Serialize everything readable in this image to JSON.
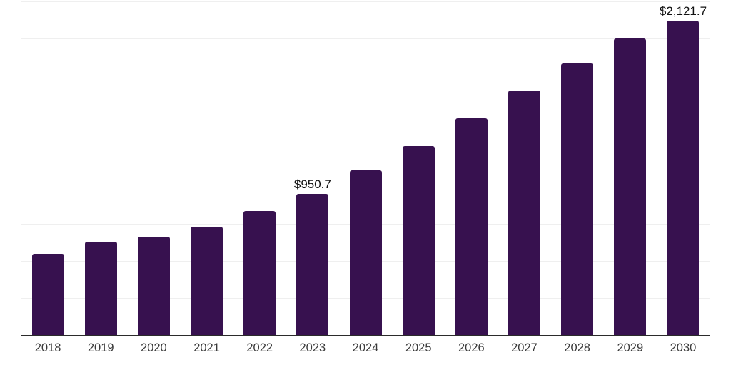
{
  "chart_data": {
    "type": "bar",
    "title": "",
    "xlabel": "",
    "ylabel": "",
    "categories": [
      "2018",
      "2019",
      "2020",
      "2021",
      "2022",
      "2023",
      "2024",
      "2025",
      "2026",
      "2027",
      "2028",
      "2029",
      "2030"
    ],
    "values": [
      548,
      630,
      663,
      731,
      837,
      950.7,
      1110,
      1274,
      1462,
      1649,
      1832,
      2000,
      2121.7
    ],
    "data_labels": [
      "",
      "",
      "",
      "",
      "",
      "$950.7",
      "",
      "",
      "",
      "",
      "",
      "",
      "$2,121.7"
    ],
    "ylim": [
      0,
      2250
    ],
    "gridline_interval": 250,
    "grid": "horizontal-only",
    "legend": "none",
    "colors": {
      "bar": "#37114F",
      "gridline": "#efefef",
      "axis_line": "#2b2b2b",
      "tick_label": "#3a3a3a",
      "value_label": "#111111",
      "background": "#ffffff"
    }
  }
}
